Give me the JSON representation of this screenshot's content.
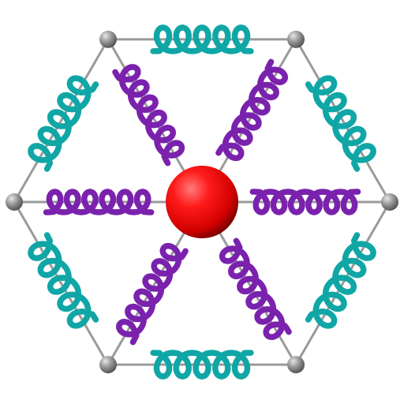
{
  "diagram": {
    "colors": {
      "background": "#ffffff",
      "frame_line": "#9a9a9a",
      "vertex_node": "#8c8c8c",
      "center_node": "#ff0000",
      "outer_spring": "#10a6a6",
      "inner_spring": "#7a22ad"
    },
    "vertex_count": 6,
    "outer_spring_count": 6,
    "inner_spring_count": 6,
    "outer_spring_turns": 5,
    "inner_spring_turns": 6
  }
}
